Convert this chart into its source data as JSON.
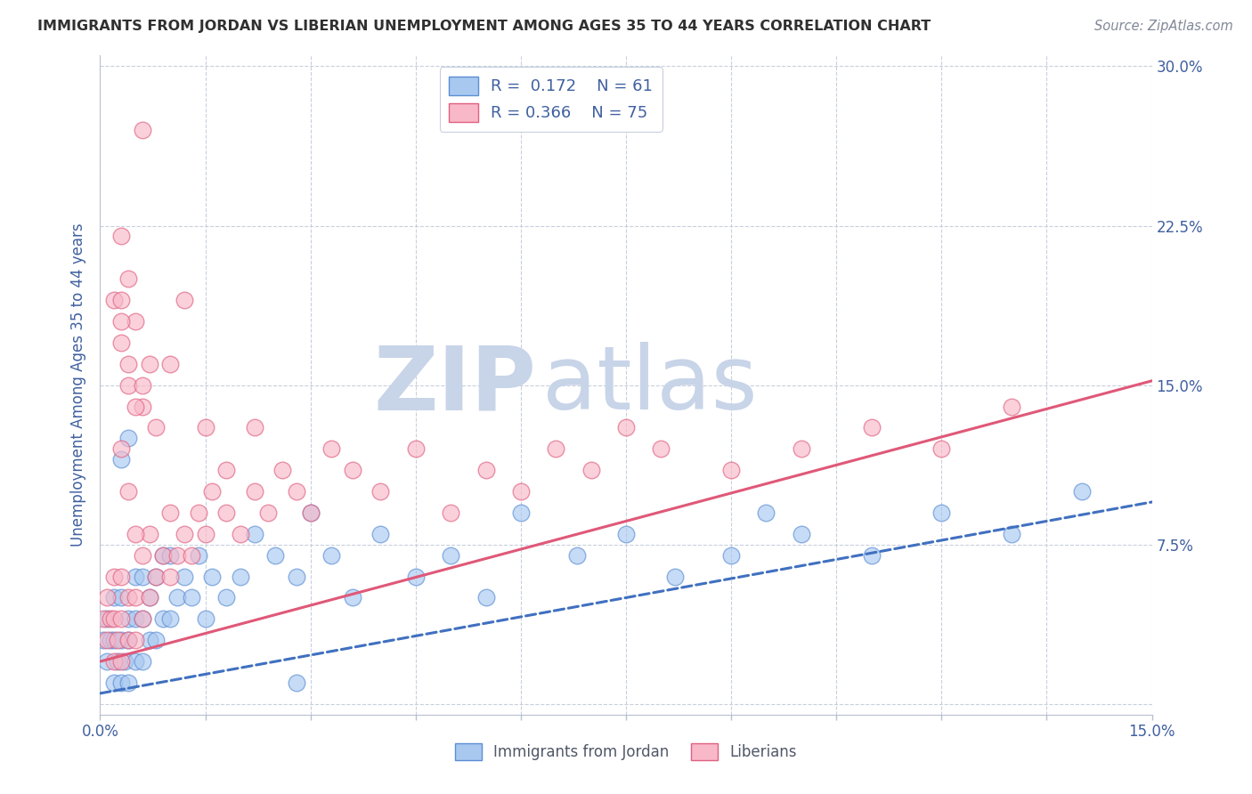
{
  "title": "IMMIGRANTS FROM JORDAN VS LIBERIAN UNEMPLOYMENT AMONG AGES 35 TO 44 YEARS CORRELATION CHART",
  "source_text": "Source: ZipAtlas.com",
  "ylabel": "Unemployment Among Ages 35 to 44 years",
  "xlim": [
    0.0,
    0.15
  ],
  "ylim": [
    -0.005,
    0.305
  ],
  "yticks": [
    0.0,
    0.075,
    0.15,
    0.225,
    0.3
  ],
  "ytick_labels": [
    "",
    "7.5%",
    "15.0%",
    "22.5%",
    "30.0%"
  ],
  "legend_r1": "0.172",
  "legend_n1": "61",
  "legend_r2": "0.366",
  "legend_n2": "75",
  "jordan_color": "#A8C8F0",
  "liberian_color": "#F8B8C8",
  "jordan_edge_color": "#5B8ED5",
  "liberian_edge_color": "#E06080",
  "jordan_line_color": "#4070C0",
  "liberian_line_color": "#E05878",
  "watermark_color": "#C8D4E8",
  "background_color": "#FFFFFF",
  "title_color": "#303030",
  "axis_color": "#4060A0",
  "source_color": "#808898",
  "grid_color": "#C8D0DC",
  "jordan_trend_start_x": 0.0,
  "jordan_trend_start_y": 0.005,
  "jordan_trend_end_x": 0.15,
  "jordan_trend_end_y": 0.095,
  "liberian_trend_start_x": 0.0,
  "liberian_trend_start_y": 0.02,
  "liberian_trend_end_x": 0.15,
  "liberian_trend_end_y": 0.152,
  "jordan_x": [
    0.0005,
    0.001,
    0.001,
    0.0015,
    0.002,
    0.002,
    0.002,
    0.0025,
    0.003,
    0.003,
    0.003,
    0.0035,
    0.004,
    0.004,
    0.004,
    0.005,
    0.005,
    0.005,
    0.006,
    0.006,
    0.006,
    0.007,
    0.007,
    0.008,
    0.008,
    0.009,
    0.009,
    0.01,
    0.01,
    0.011,
    0.012,
    0.013,
    0.014,
    0.015,
    0.016,
    0.018,
    0.02,
    0.022,
    0.025,
    0.028,
    0.03,
    0.033,
    0.036,
    0.04,
    0.045,
    0.05,
    0.055,
    0.06,
    0.068,
    0.075,
    0.082,
    0.09,
    0.095,
    0.1,
    0.11,
    0.12,
    0.13,
    0.14,
    0.003,
    0.004,
    0.028
  ],
  "jordan_y": [
    0.03,
    0.02,
    0.04,
    0.03,
    0.01,
    0.03,
    0.05,
    0.02,
    0.01,
    0.03,
    0.05,
    0.02,
    0.01,
    0.03,
    0.04,
    0.02,
    0.04,
    0.06,
    0.02,
    0.04,
    0.06,
    0.03,
    0.05,
    0.03,
    0.06,
    0.04,
    0.07,
    0.04,
    0.07,
    0.05,
    0.06,
    0.05,
    0.07,
    0.04,
    0.06,
    0.05,
    0.06,
    0.08,
    0.07,
    0.06,
    0.09,
    0.07,
    0.05,
    0.08,
    0.06,
    0.07,
    0.05,
    0.09,
    0.07,
    0.08,
    0.06,
    0.07,
    0.09,
    0.08,
    0.07,
    0.09,
    0.08,
    0.1,
    0.115,
    0.125,
    0.01
  ],
  "liberian_x": [
    0.0005,
    0.001,
    0.001,
    0.0015,
    0.002,
    0.002,
    0.002,
    0.0025,
    0.003,
    0.003,
    0.003,
    0.004,
    0.004,
    0.005,
    0.005,
    0.006,
    0.006,
    0.007,
    0.007,
    0.008,
    0.009,
    0.01,
    0.01,
    0.011,
    0.012,
    0.013,
    0.014,
    0.015,
    0.016,
    0.018,
    0.02,
    0.022,
    0.024,
    0.026,
    0.028,
    0.03,
    0.033,
    0.036,
    0.04,
    0.045,
    0.05,
    0.055,
    0.06,
    0.065,
    0.07,
    0.075,
    0.08,
    0.09,
    0.1,
    0.11,
    0.12,
    0.13,
    0.003,
    0.004,
    0.005,
    0.006,
    0.007,
    0.008,
    0.01,
    0.012,
    0.015,
    0.018,
    0.022,
    0.002,
    0.003,
    0.004,
    0.003,
    0.004,
    0.005,
    0.006,
    0.006,
    0.003,
    0.004,
    0.005,
    0.003
  ],
  "liberian_y": [
    0.04,
    0.03,
    0.05,
    0.04,
    0.02,
    0.04,
    0.06,
    0.03,
    0.02,
    0.04,
    0.06,
    0.03,
    0.05,
    0.03,
    0.05,
    0.04,
    0.07,
    0.05,
    0.08,
    0.06,
    0.07,
    0.06,
    0.09,
    0.07,
    0.08,
    0.07,
    0.09,
    0.08,
    0.1,
    0.09,
    0.08,
    0.1,
    0.09,
    0.11,
    0.1,
    0.09,
    0.12,
    0.11,
    0.1,
    0.12,
    0.09,
    0.11,
    0.1,
    0.12,
    0.11,
    0.13,
    0.12,
    0.11,
    0.12,
    0.13,
    0.12,
    0.14,
    0.17,
    0.15,
    0.18,
    0.14,
    0.16,
    0.13,
    0.16,
    0.19,
    0.13,
    0.11,
    0.13,
    0.19,
    0.18,
    0.2,
    0.22,
    0.16,
    0.14,
    0.15,
    0.27,
    0.12,
    0.1,
    0.08,
    0.19
  ]
}
